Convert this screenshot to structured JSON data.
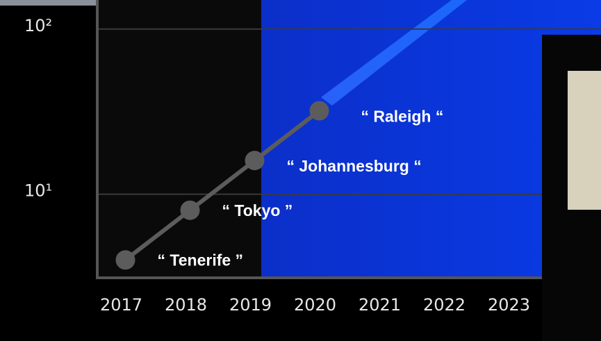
{
  "chart_data": {
    "type": "line",
    "log_scale": "y",
    "grid": true,
    "x": [
      2017,
      2018,
      2019,
      2020
    ],
    "series": [
      {
        "color": "#5c5c5c",
        "values": [
          4,
          8,
          16,
          32
        ]
      }
    ],
    "point_labels": [
      "“ Tenerife ”",
      "“ Tokyo ”",
      "“ Johannesburg “",
      "“ Raleigh “"
    ],
    "xlim": [
      2016.5,
      2023.5
    ],
    "xticks": [
      2017,
      2018,
      2019,
      2020,
      2021,
      2022,
      2023
    ],
    "ylim": [
      3,
      150
    ],
    "yticks": [
      {
        "value": 10,
        "label": "10¹"
      },
      {
        "value": 100,
        "label": "10²"
      }
    ]
  }
}
